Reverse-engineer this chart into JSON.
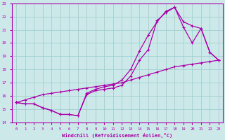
{
  "xlabel": "Windchill (Refroidissement éolien,°C)",
  "xlim": [
    -0.5,
    23.5
  ],
  "ylim": [
    14,
    23
  ],
  "xticks": [
    0,
    1,
    2,
    3,
    4,
    5,
    6,
    7,
    8,
    9,
    10,
    11,
    12,
    13,
    14,
    15,
    16,
    17,
    18,
    19,
    20,
    21,
    22,
    23
  ],
  "yticks": [
    14,
    15,
    16,
    17,
    18,
    19,
    20,
    21,
    22,
    23
  ],
  "bg_color": "#cce8e8",
  "line_color": "#aa00aa",
  "grid_color": "#99cccc",
  "line1_x": [
    0,
    1,
    2,
    3,
    4,
    5,
    6,
    7,
    8,
    9,
    10,
    11,
    12,
    13,
    14,
    15,
    16,
    17,
    18,
    19,
    20,
    21,
    22,
    23
  ],
  "line1_y": [
    15.5,
    15.4,
    15.4,
    15.1,
    14.9,
    14.6,
    14.6,
    14.5,
    16.1,
    16.4,
    16.5,
    16.6,
    16.8,
    17.5,
    18.7,
    19.5,
    21.7,
    22.3,
    22.7,
    21.2,
    20.0,
    21.1,
    19.3,
    18.7
  ],
  "line2_x": [
    0,
    1,
    2,
    3,
    4,
    5,
    6,
    7,
    8,
    9,
    10,
    11,
    12,
    13,
    14,
    15,
    16,
    17,
    18,
    19,
    20,
    21,
    22,
    23
  ],
  "line2_y": [
    15.5,
    15.4,
    15.4,
    15.1,
    14.9,
    14.6,
    14.6,
    14.5,
    16.2,
    16.5,
    16.7,
    16.8,
    17.2,
    18.0,
    19.4,
    20.6,
    21.6,
    22.4,
    22.7,
    21.6,
    21.3,
    21.1,
    19.3,
    18.7
  ],
  "line3_x": [
    0,
    1,
    2,
    3,
    4,
    5,
    6,
    7,
    8,
    9,
    10,
    11,
    12,
    13,
    14,
    15,
    16,
    17,
    18,
    19,
    20,
    21,
    22,
    23
  ],
  "line3_y": [
    15.5,
    15.7,
    15.9,
    16.1,
    16.2,
    16.3,
    16.4,
    16.5,
    16.6,
    16.7,
    16.8,
    16.9,
    17.0,
    17.2,
    17.4,
    17.6,
    17.8,
    18.0,
    18.2,
    18.3,
    18.4,
    18.5,
    18.6,
    18.7
  ]
}
